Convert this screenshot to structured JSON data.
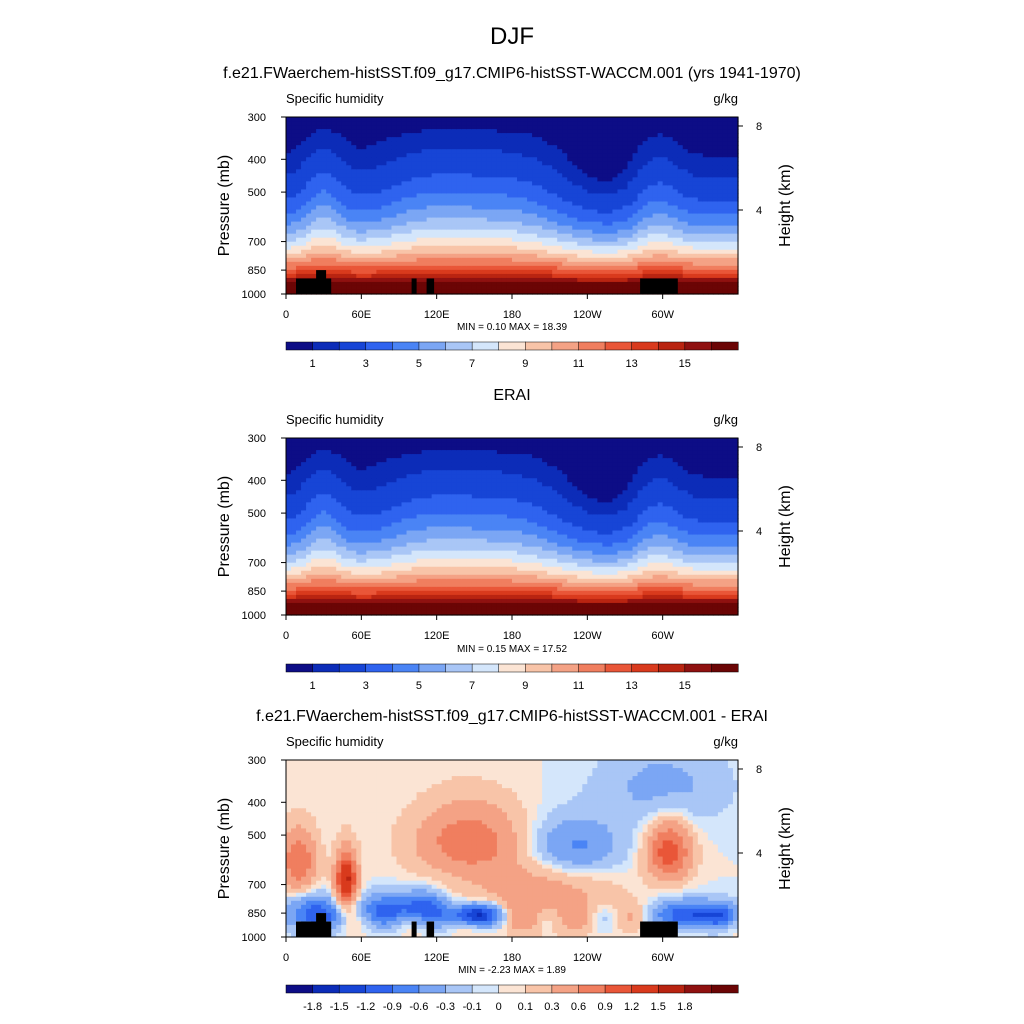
{
  "figure": {
    "title": "DJF"
  },
  "chart_data": [
    {
      "type": "heatmap",
      "title": "f.e21.FWaerchem-histSST.f09_g17.CMIP6-histSST-WACCM.001 (yrs 1941-1970)",
      "left_label": "Specific humidity",
      "right_label": "g/kg",
      "ylabel": "Pressure (mb)",
      "ylabel_right": "Height (km)",
      "x_ticks": [
        "0",
        "60E",
        "120E",
        "180",
        "120W",
        "60W"
      ],
      "y_ticks": [
        "300",
        "400",
        "500",
        "700",
        "850",
        "1000"
      ],
      "y_tick_values": [
        300,
        400,
        500,
        700,
        850,
        1000
      ],
      "height_ticks": [
        "8",
        "4"
      ],
      "height_tick_values": [
        8,
        4
      ],
      "stats": "MIN =   0.10  MAX =  18.39",
      "levels": [
        "1",
        "3",
        "5",
        "7",
        "9",
        "11",
        "13",
        "15"
      ],
      "colors": [
        "#0d0d86",
        "#0c2cb8",
        "#1745d6",
        "#2f63ef",
        "#4a84f5",
        "#7ba6f4",
        "#a9c6f6",
        "#d4e6fb",
        "#fbe4d4",
        "#f8c4a8",
        "#f4a285",
        "#f07e5f",
        "#e95638",
        "#d93a1d",
        "#b92411",
        "#8f1110",
        "#6b0505"
      ],
      "field": "humidity",
      "show_topo": true
    },
    {
      "type": "heatmap",
      "title": "ERAI",
      "left_label": "Specific humidity",
      "right_label": "g/kg",
      "ylabel": "Pressure (mb)",
      "ylabel_right": "Height (km)",
      "x_ticks": [
        "0",
        "60E",
        "120E",
        "180",
        "120W",
        "60W"
      ],
      "y_ticks": [
        "300",
        "400",
        "500",
        "700",
        "850",
        "1000"
      ],
      "y_tick_values": [
        300,
        400,
        500,
        700,
        850,
        1000
      ],
      "height_ticks": [
        "8",
        "4"
      ],
      "height_tick_values": [
        8,
        4
      ],
      "stats": "MIN =   0.15  MAX =  17.52",
      "levels": [
        "1",
        "3",
        "5",
        "7",
        "9",
        "11",
        "13",
        "15"
      ],
      "colors": [
        "#0d0d86",
        "#0c2cb8",
        "#1745d6",
        "#2f63ef",
        "#4a84f5",
        "#7ba6f4",
        "#a9c6f6",
        "#d4e6fb",
        "#fbe4d4",
        "#f8c4a8",
        "#f4a285",
        "#f07e5f",
        "#e95638",
        "#d93a1d",
        "#b92411",
        "#8f1110",
        "#6b0505"
      ],
      "field": "humidity",
      "show_topo": false
    },
    {
      "type": "heatmap",
      "title": "f.e21.FWaerchem-histSST.f09_g17.CMIP6-histSST-WACCM.001 - ERAI",
      "left_label": "Specific humidity",
      "right_label": "g/kg",
      "ylabel": "Pressure (mb)",
      "ylabel_right": "Height (km)",
      "x_ticks": [
        "0",
        "60E",
        "120E",
        "180",
        "120W",
        "60W"
      ],
      "y_ticks": [
        "300",
        "400",
        "500",
        "700",
        "850",
        "1000"
      ],
      "y_tick_values": [
        300,
        400,
        500,
        700,
        850,
        1000
      ],
      "height_ticks": [
        "8",
        "4"
      ],
      "height_tick_values": [
        8,
        4
      ],
      "stats": "MIN =  -2.23  MAX =   1.89",
      "levels": [
        "-1.8",
        "-1.5",
        "-1.2",
        "-0.9",
        "-0.6",
        "-0.3",
        "-0.1",
        "0",
        "0.1",
        "0.3",
        "0.6",
        "0.9",
        "1.2",
        "1.5",
        "1.8"
      ],
      "colors": [
        "#0d0d86",
        "#0c2cb8",
        "#1745d6",
        "#2f63ef",
        "#4a84f5",
        "#7ba6f4",
        "#a9c6f6",
        "#d4e6fb",
        "#fbe4d4",
        "#f8c4a8",
        "#f4a285",
        "#f07e5f",
        "#e95638",
        "#d93a1d",
        "#b92411",
        "#8f1110",
        "#6b0505"
      ],
      "field": "difference",
      "show_topo": true
    }
  ]
}
